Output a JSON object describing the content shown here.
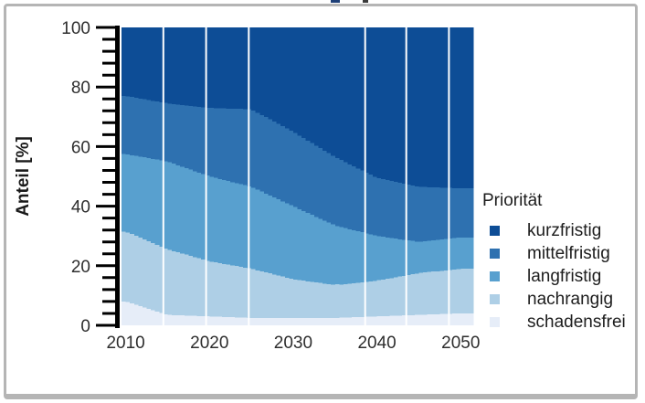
{
  "chart_data": {
    "type": "area",
    "stacked": true,
    "title": "",
    "ylabel": "Anteil [%]",
    "xlabel": "",
    "ylim": [
      0,
      100
    ],
    "y_ticks": [
      0,
      20,
      40,
      60,
      80,
      100
    ],
    "y_minor_step": 4,
    "x": [
      2010,
      2015,
      2020,
      2025,
      2030,
      2035,
      2040,
      2045,
      2050
    ],
    "x_domain": [
      2009.5,
      2051.5
    ],
    "x_ticks": [
      2010,
      2020,
      2030,
      2040,
      2050
    ],
    "gridline_years": [
      2014.5,
      2019.6,
      2024.7,
      2038.6,
      2043.5,
      2048.6
    ],
    "legend_title": "Priorität",
    "legend_position": "right",
    "series": [
      {
        "name": "kurzfristig",
        "color": "#0d4d96",
        "values": [
          23,
          25.5,
          27,
          27.5,
          35,
          43.5,
          50.5,
          53.5,
          54
        ]
      },
      {
        "name": "mittelfristig",
        "color": "#2e71b0",
        "values": [
          19.5,
          19.5,
          23,
          26,
          25,
          23,
          19.5,
          18.5,
          16.5
        ]
      },
      {
        "name": "langfristig",
        "color": "#58a0cf",
        "values": [
          26,
          29.5,
          28.5,
          27.5,
          24.5,
          20,
          15,
          10.5,
          10.5
        ]
      },
      {
        "name": "nachrangig",
        "color": "#aecfe6",
        "values": [
          23.5,
          22,
          18.5,
          16.5,
          13,
          11,
          12,
          14,
          15
        ]
      },
      {
        "name": "schadensfrei",
        "color": "#e6edf8",
        "values": [
          8,
          3.5,
          3,
          2.5,
          2.5,
          2.5,
          3,
          3.5,
          4
        ]
      }
    ],
    "stack_note": "series listed top-of-stack first; stacking bottom-up is reverse order"
  },
  "colors": {
    "axis": "#000000",
    "tick_label": "#2e2e2e",
    "gridline": "#ffffff",
    "frame": "#b5b5b5",
    "background": "#ffffff"
  }
}
